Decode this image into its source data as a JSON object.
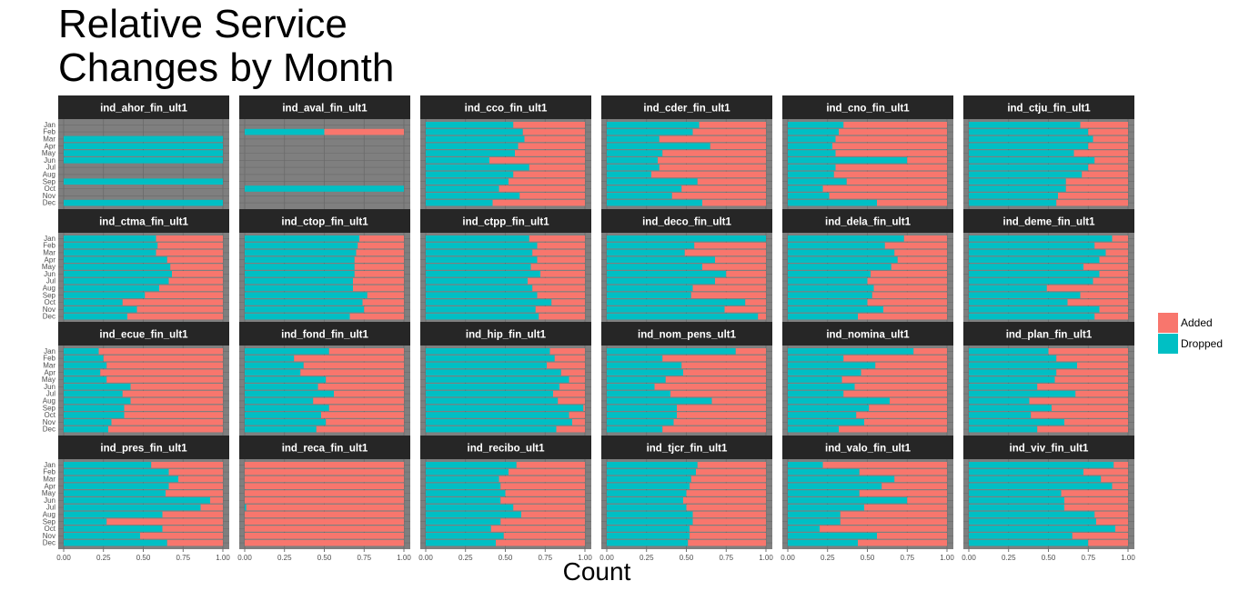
{
  "title_line1": "Relative Service",
  "title_line2": "Changes by Month",
  "colors": {
    "added": "#F8766D",
    "dropped": "#00BFC4",
    "panel_bg": "#7F7F7F",
    "strip_bg": "#262626",
    "strip_text": "#FFFFFF"
  },
  "chart_data": {
    "type": "bar",
    "orientation": "horizontal",
    "stacked": "fill",
    "xlabel": "Count",
    "ylabel": "",
    "xlim": [
      0,
      1
    ],
    "x_ticks": [
      "0.00",
      "0.25",
      "0.50",
      "0.75",
      "1.00"
    ],
    "categories": [
      "Jan",
      "Feb",
      "Mar",
      "Apr",
      "May",
      "Jun",
      "Jul",
      "Aug",
      "Sep",
      "Oct",
      "Nov",
      "Dec"
    ],
    "legend": {
      "position": "right",
      "entries": [
        "Added",
        "Dropped"
      ]
    },
    "note": "values are the Dropped fraction per month (Jan..Dec); Added = 1 - Dropped; null = no bar",
    "panels": [
      {
        "name": "ind_ahor_fin_ult1",
        "dropped": [
          null,
          null,
          1,
          1,
          1,
          1,
          null,
          null,
          1,
          null,
          null,
          1
        ]
      },
      {
        "name": "ind_aval_fin_ult1",
        "dropped": [
          null,
          0.5,
          null,
          null,
          null,
          null,
          null,
          null,
          null,
          1,
          null,
          null
        ]
      },
      {
        "name": "ind_cco_fin_ult1",
        "dropped": [
          0.55,
          0.61,
          0.62,
          0.58,
          0.56,
          0.4,
          0.65,
          0.55,
          0.52,
          0.46,
          0.59,
          0.42
        ]
      },
      {
        "name": "ind_cder_fin_ult1",
        "dropped": [
          0.58,
          0.54,
          0.33,
          0.65,
          0.35,
          0.32,
          0.33,
          0.28,
          0.57,
          0.47,
          0.41,
          0.6
        ]
      },
      {
        "name": "ind_cno_fin_ult1",
        "dropped": [
          0.35,
          0.32,
          0.3,
          0.28,
          0.3,
          0.75,
          0.3,
          0.29,
          0.37,
          0.22,
          0.26,
          0.56
        ]
      },
      {
        "name": "ind_ctju_fin_ult1",
        "dropped": [
          0.7,
          0.75,
          0.78,
          0.75,
          0.66,
          0.79,
          0.75,
          0.71,
          0.61,
          0.61,
          0.56,
          0.55
        ]
      },
      {
        "name": "ind_ctma_fin_ult1",
        "dropped": [
          0.58,
          0.59,
          0.58,
          0.65,
          0.67,
          0.68,
          0.66,
          0.6,
          0.51,
          0.37,
          0.46,
          0.4
        ]
      },
      {
        "name": "ind_ctop_fin_ult1",
        "dropped": [
          0.72,
          0.71,
          0.7,
          0.69,
          0.69,
          0.69,
          0.68,
          0.68,
          0.77,
          0.74,
          0.75,
          0.66
        ]
      },
      {
        "name": "ind_ctpp_fin_ult1",
        "dropped": [
          0.65,
          0.7,
          0.67,
          0.7,
          0.66,
          0.72,
          0.64,
          0.67,
          0.7,
          0.79,
          0.69,
          0.71
        ]
      },
      {
        "name": "ind_deco_fin_ult1",
        "dropped": [
          1.0,
          0.55,
          0.49,
          0.68,
          0.6,
          0.75,
          0.68,
          0.54,
          0.53,
          0.87,
          0.74,
          0.95
        ]
      },
      {
        "name": "ind_dela_fin_ult1",
        "dropped": [
          0.73,
          0.61,
          0.67,
          0.69,
          0.65,
          0.52,
          0.5,
          0.54,
          0.53,
          0.5,
          0.6,
          0.44
        ]
      },
      {
        "name": "ind_deme_fin_ult1",
        "dropped": [
          0.9,
          0.79,
          0.86,
          0.82,
          0.72,
          0.82,
          0.78,
          0.49,
          0.7,
          0.62,
          0.82,
          0.79
        ]
      },
      {
        "name": "ind_ecue_fin_ult1",
        "dropped": [
          0.22,
          0.25,
          0.27,
          0.23,
          0.27,
          0.42,
          0.37,
          0.42,
          0.38,
          0.38,
          0.3,
          0.28
        ]
      },
      {
        "name": "ind_fond_fin_ult1",
        "dropped": [
          0.53,
          0.31,
          0.37,
          0.35,
          0.51,
          0.46,
          0.56,
          0.43,
          0.53,
          0.48,
          0.51,
          0.45
        ]
      },
      {
        "name": "ind_hip_fin_ult1",
        "dropped": [
          0.78,
          0.81,
          0.76,
          0.85,
          0.9,
          0.84,
          0.8,
          0.83,
          0.99,
          0.9,
          0.92,
          0.82
        ]
      },
      {
        "name": "ind_nom_pens_ult1",
        "dropped": [
          0.81,
          0.35,
          0.47,
          0.48,
          0.37,
          0.3,
          0.4,
          0.66,
          0.44,
          0.44,
          0.42,
          0.35
        ]
      },
      {
        "name": "ind_nomina_ult1",
        "dropped": [
          0.79,
          0.35,
          0.55,
          0.46,
          0.34,
          0.42,
          0.35,
          0.64,
          0.51,
          0.43,
          0.48,
          0.32
        ]
      },
      {
        "name": "ind_plan_fin_ult1",
        "dropped": [
          0.5,
          0.55,
          0.68,
          0.55,
          0.54,
          0.43,
          0.67,
          0.38,
          0.52,
          0.39,
          0.6,
          0.43
        ]
      },
      {
        "name": "ind_pres_fin_ult1",
        "dropped": [
          0.55,
          0.66,
          0.72,
          0.66,
          0.64,
          0.92,
          0.86,
          0.62,
          0.27,
          0.62,
          0.48,
          0.65
        ]
      },
      {
        "name": "ind_reca_fin_ult1",
        "dropped": [
          0,
          0,
          0,
          0,
          0,
          0,
          0.01,
          0,
          0,
          0,
          0,
          0
        ]
      },
      {
        "name": "ind_recibo_ult1",
        "dropped": [
          0.57,
          0.52,
          0.46,
          0.47,
          0.5,
          0.47,
          0.55,
          0.6,
          0.47,
          0.41,
          0.49,
          0.44
        ]
      },
      {
        "name": "ind_tjcr_fin_ult1",
        "dropped": [
          0.57,
          0.56,
          0.53,
          0.52,
          0.5,
          0.48,
          0.5,
          0.54,
          0.54,
          0.52,
          0.52,
          0.51
        ]
      },
      {
        "name": "ind_valo_fin_ult1",
        "dropped": [
          0.22,
          0.45,
          0.67,
          0.59,
          0.45,
          0.75,
          0.48,
          0.33,
          0.33,
          0.2,
          0.56,
          0.44
        ]
      },
      {
        "name": "ind_viv_fin_ult1",
        "dropped": [
          0.91,
          0.72,
          0.83,
          0.9,
          0.58,
          0.6,
          0.6,
          0.79,
          0.8,
          0.92,
          0.65,
          0.75
        ]
      }
    ]
  }
}
